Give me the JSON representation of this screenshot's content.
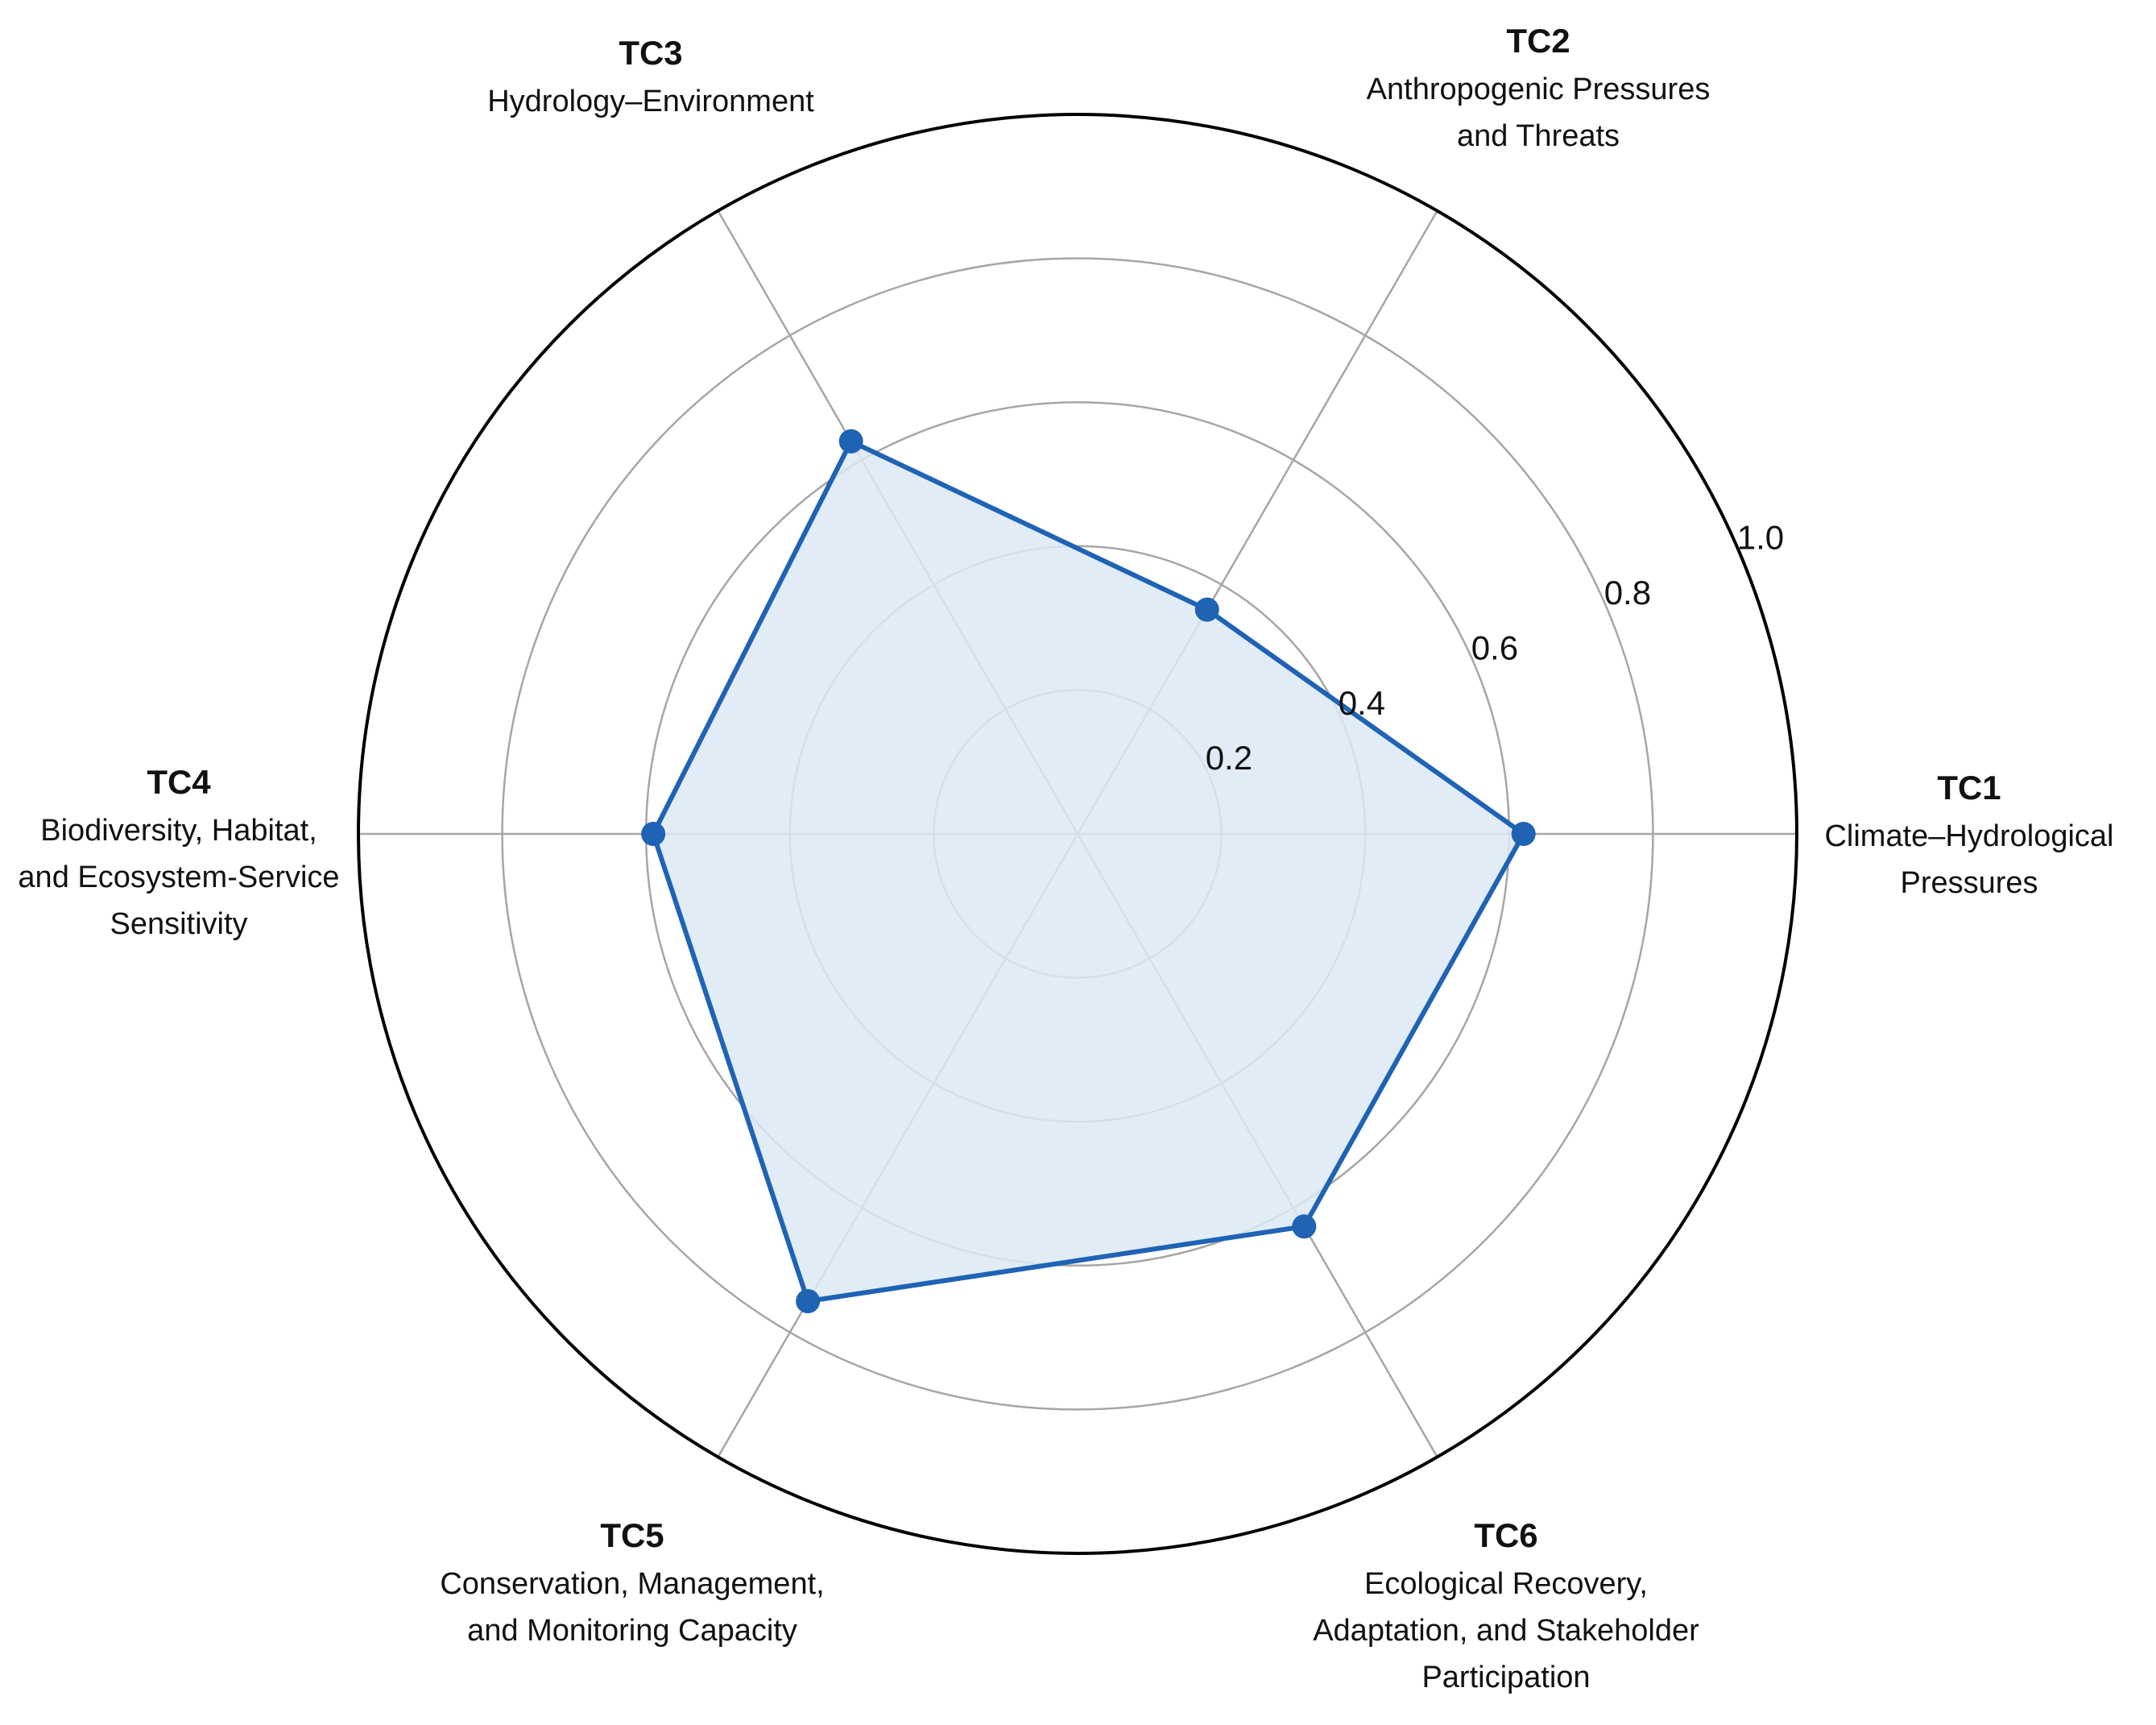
{
  "chart_data": {
    "type": "radar",
    "rlim": [
      0,
      1.0
    ],
    "r_ticks": [
      0.2,
      0.4,
      0.6,
      0.8,
      1.0
    ],
    "r_tick_labels": [
      "0.2",
      "0.4",
      "0.6",
      "0.8",
      "1.0"
    ],
    "grid": true,
    "axes": [
      {
        "code": "TC1",
        "label_lines": [
          "Climate–Hydrological",
          "Pressures"
        ]
      },
      {
        "code": "TC2",
        "label_lines": [
          "Anthropogenic Pressures",
          "and Threats"
        ]
      },
      {
        "code": "TC3",
        "label_lines": [
          "Hydrology–Environment"
        ]
      },
      {
        "code": "TC4",
        "label_lines": [
          "Biodiversity, Habitat,",
          "and Ecosystem-Service",
          "Sensitivity"
        ]
      },
      {
        "code": "TC5",
        "label_lines": [
          "Conservation, Management,",
          "and Monitoring Capacity"
        ]
      },
      {
        "code": "TC6",
        "label_lines": [
          "Ecological Recovery,",
          "Adaptation, and Stakeholder",
          "Participation"
        ]
      }
    ],
    "series": [
      {
        "values": [
          0.62,
          0.36,
          0.63,
          0.59,
          0.75,
          0.63
        ]
      }
    ],
    "colors": {
      "line": "#1f63b4",
      "fill": "#dce9f6",
      "grid": "#a6a6a6",
      "outer": "#000000"
    }
  }
}
